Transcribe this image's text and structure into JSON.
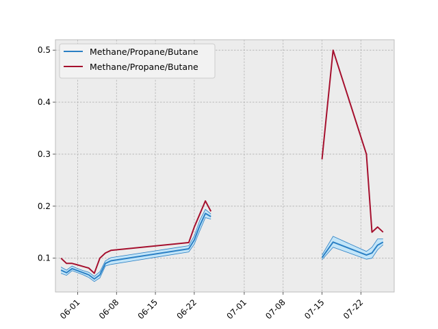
{
  "chart_data": {
    "type": "line",
    "title": "",
    "xlabel": "",
    "ylabel": "",
    "xlim": [
      "2024-05-28",
      "2024-07-28"
    ],
    "ylim": [
      0.035,
      0.52
    ],
    "grid": true,
    "legend_position": "top-left",
    "colors": {
      "background": "#ececec",
      "series_blue": "#2a7fc4",
      "band_fill": "#bfe4fa",
      "series_red": "#a50f2d",
      "grid": "#b0b0b0"
    },
    "x_tick_labels": [
      "06-01",
      "06-08",
      "06-15",
      "06-22",
      "07-01",
      "07-08",
      "07-15",
      "07-22"
    ],
    "x_ticks": [
      "2024-06-01",
      "2024-06-08",
      "2024-06-15",
      "2024-06-22",
      "2024-07-01",
      "2024-07-08",
      "2024-07-15",
      "2024-07-22"
    ],
    "y_ticks": [
      0.1,
      0.2,
      0.3,
      0.4,
      0.5
    ],
    "y_tick_labels": [
      "0.1",
      "0.2",
      "0.3",
      "0.4",
      "0.5"
    ],
    "series": [
      {
        "name": "Methane/Propane/Butane",
        "color": "#2a7fc4",
        "segments": [
          {
            "x": [
              "2024-05-29",
              "2024-05-30",
              "2024-05-31",
              "2024-06-01",
              "2024-06-02",
              "2024-06-03",
              "2024-06-04",
              "2024-06-05",
              "2024-06-06",
              "2024-06-07",
              "2024-06-21",
              "2024-06-22",
              "2024-06-23",
              "2024-06-24",
              "2024-06-25"
            ],
            "y": [
              0.077,
              0.072,
              0.08,
              0.076,
              0.072,
              0.068,
              0.06,
              0.068,
              0.09,
              0.095,
              0.118,
              0.135,
              0.163,
              0.186,
              0.18
            ],
            "lower": [
              0.071,
              0.067,
              0.076,
              0.072,
              0.068,
              0.063,
              0.055,
              0.062,
              0.085,
              0.088,
              0.112,
              0.127,
              0.153,
              0.178,
              0.175
            ],
            "upper": [
              0.083,
              0.077,
              0.085,
              0.08,
              0.076,
              0.073,
              0.065,
              0.074,
              0.095,
              0.101,
              0.124,
              0.143,
              0.173,
              0.194,
              0.185
            ]
          },
          {
            "x": [
              "2024-07-15",
              "2024-07-17",
              "2024-07-23",
              "2024-07-24",
              "2024-07-25",
              "2024-07-26"
            ],
            "y": [
              0.101,
              0.131,
              0.106,
              0.11,
              0.125,
              0.131
            ],
            "lower": [
              0.097,
              0.121,
              0.098,
              0.1,
              0.116,
              0.126
            ],
            "upper": [
              0.106,
              0.142,
              0.113,
              0.121,
              0.137,
              0.137
            ]
          }
        ]
      },
      {
        "name": "Methane/Propane/Butane",
        "color": "#a50f2d",
        "segments": [
          {
            "x": [
              "2024-05-29",
              "2024-05-30",
              "2024-05-31",
              "2024-06-01",
              "2024-06-02",
              "2024-06-03",
              "2024-06-04",
              "2024-06-05",
              "2024-06-06",
              "2024-06-07",
              "2024-06-21",
              "2024-06-22",
              "2024-06-23",
              "2024-06-24",
              "2024-06-25"
            ],
            "y": [
              0.1,
              0.09,
              0.09,
              0.087,
              0.084,
              0.081,
              0.071,
              0.1,
              0.11,
              0.115,
              0.13,
              0.16,
              0.185,
              0.21,
              0.19
            ]
          },
          {
            "x": [
              "2024-07-15",
              "2024-07-17",
              "2024-07-23",
              "2024-07-24",
              "2024-07-25",
              "2024-07-26"
            ],
            "y": [
              0.29,
              0.5,
              0.3,
              0.15,
              0.16,
              0.15
            ]
          }
        ]
      }
    ]
  }
}
